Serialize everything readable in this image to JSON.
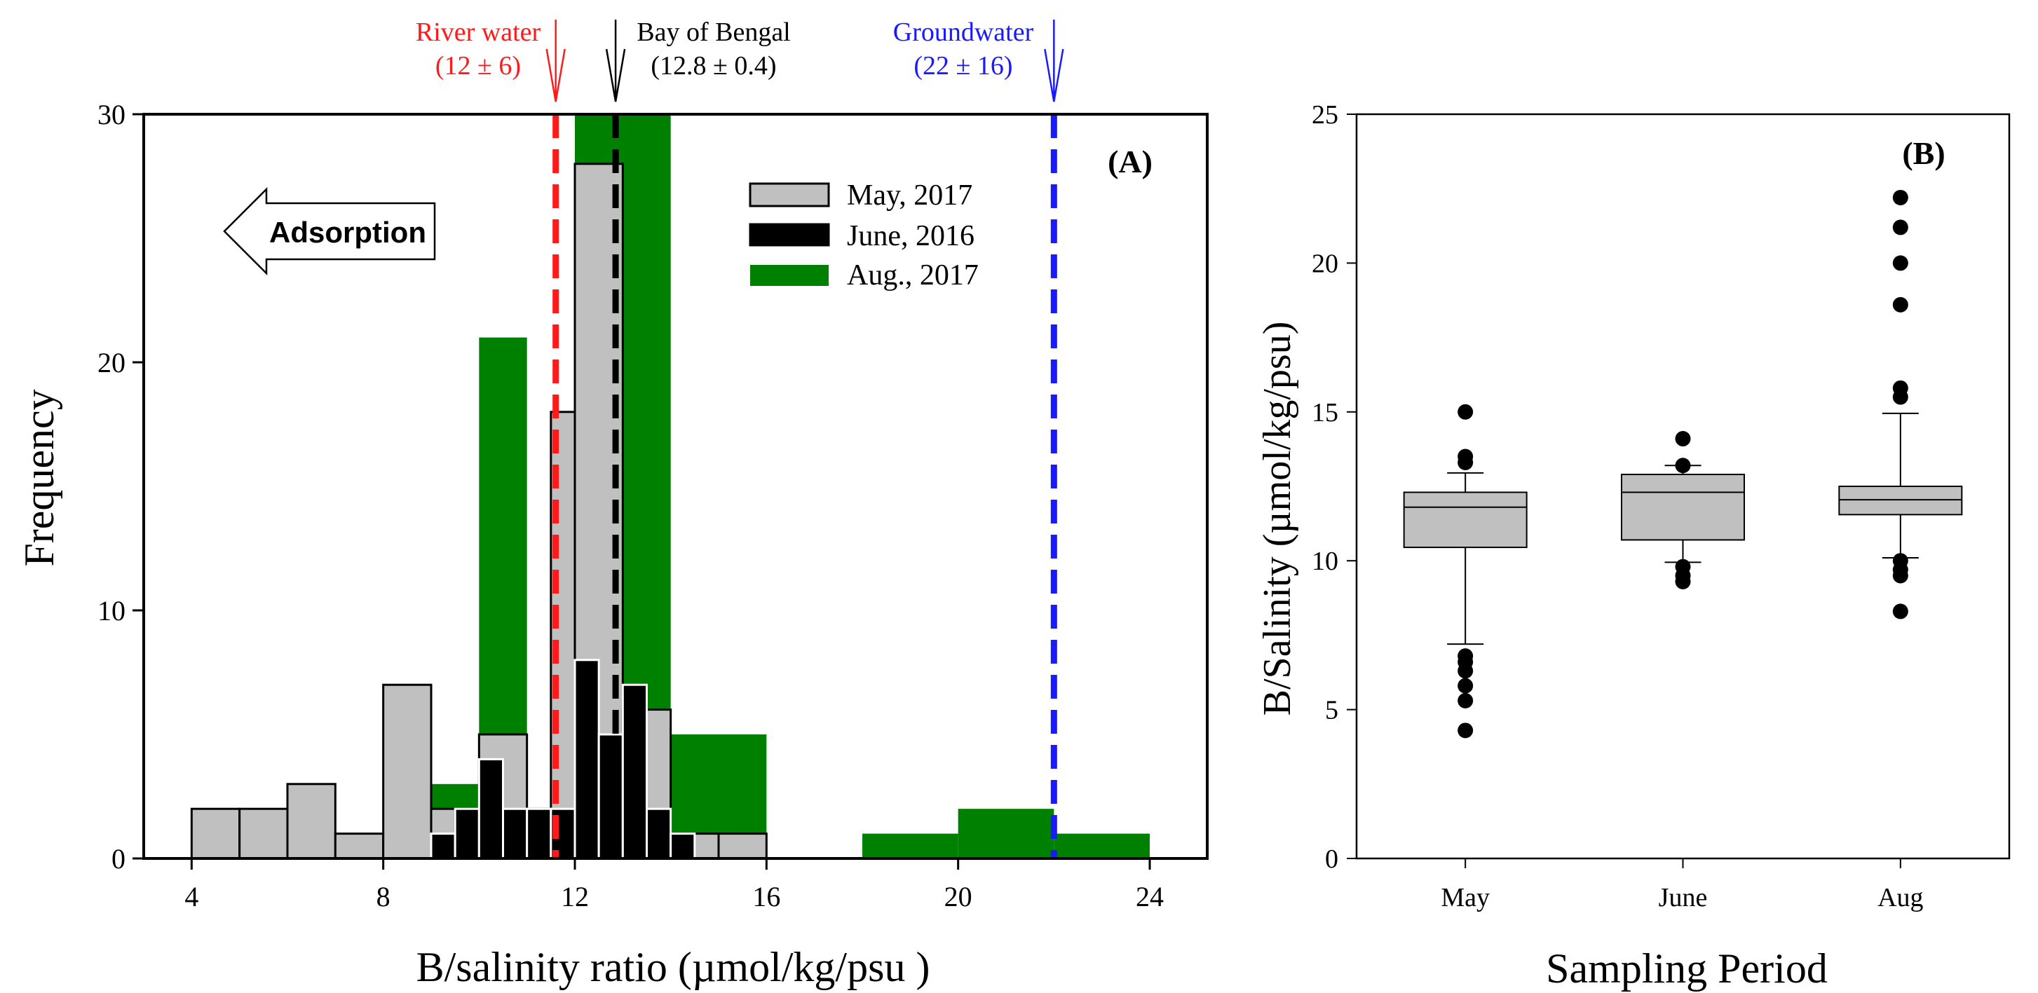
{
  "colors": {
    "may": "#c0c0c0",
    "june": "#000000",
    "aug": "#008000",
    "river": "#ff1a1a",
    "groundwater": "#1a1aff",
    "bay": "#000000",
    "box": "#c0c0c0"
  },
  "chart_data": [
    {
      "type": "bar",
      "panel_label": "(A)",
      "xlabel": "B/salinity ratio (µmol/kg/psu )",
      "ylabel": "Frequency",
      "xlim": [
        3,
        25.2
      ],
      "ylim": [
        0,
        30
      ],
      "xticks": [
        4,
        8,
        12,
        16,
        20,
        24
      ],
      "yticks": [
        0,
        10,
        20,
        30
      ],
      "legend_position": "top-right",
      "grid": false,
      "series": [
        {
          "name": "Aug., 2017",
          "color": "#008000",
          "bins": [
            {
              "x0": 9,
              "x1": 10,
              "count": 3
            },
            {
              "x0": 10,
              "x1": 11,
              "count": 21
            },
            {
              "x0": 11,
              "x1": 12,
              "count": 2
            },
            {
              "x0": 12,
              "x1": 14,
              "count": 30
            },
            {
              "x0": 14,
              "x1": 16,
              "count": 5
            },
            {
              "x0": 18,
              "x1": 20,
              "count": 1
            },
            {
              "x0": 20,
              "x1": 22,
              "count": 2
            },
            {
              "x0": 22,
              "x1": 24,
              "count": 1
            }
          ]
        },
        {
          "name": "May, 2017",
          "color": "#c0c0c0",
          "bins": [
            {
              "x0": 4,
              "x1": 5,
              "count": 2
            },
            {
              "x0": 5,
              "x1": 6,
              "count": 2
            },
            {
              "x0": 6,
              "x1": 7,
              "count": 3
            },
            {
              "x0": 7,
              "x1": 8,
              "count": 1
            },
            {
              "x0": 8,
              "x1": 9,
              "count": 7
            },
            {
              "x0": 9,
              "x1": 9.5,
              "count": 2
            },
            {
              "x0": 9.5,
              "x1": 10,
              "count": 2
            },
            {
              "x0": 10,
              "x1": 11,
              "count": 5
            },
            {
              "x0": 11,
              "x1": 11.5,
              "count": 2
            },
            {
              "x0": 11.5,
              "x1": 12,
              "count": 18
            },
            {
              "x0": 12,
              "x1": 13,
              "count": 28
            },
            {
              "x0": 13,
              "x1": 14,
              "count": 6
            },
            {
              "x0": 14,
              "x1": 15,
              "count": 1
            },
            {
              "x0": 15,
              "x1": 16,
              "count": 1
            }
          ]
        },
        {
          "name": "June, 2016",
          "color": "#000000",
          "bins": [
            {
              "x0": 9,
              "x1": 9.5,
              "count": 1
            },
            {
              "x0": 9.5,
              "x1": 10,
              "count": 2
            },
            {
              "x0": 10,
              "x1": 10.5,
              "count": 4
            },
            {
              "x0": 10.5,
              "x1": 11,
              "count": 2
            },
            {
              "x0": 11,
              "x1": 11.5,
              "count": 2
            },
            {
              "x0": 11.5,
              "x1": 12,
              "count": 2
            },
            {
              "x0": 12,
              "x1": 12.5,
              "count": 8
            },
            {
              "x0": 12.5,
              "x1": 13,
              "count": 5
            },
            {
              "x0": 13,
              "x1": 13.5,
              "count": 7
            },
            {
              "x0": 13.5,
              "x1": 14,
              "count": 2
            },
            {
              "x0": 14,
              "x1": 14.5,
              "count": 1
            },
            {
              "x0": 14.5,
              "x1": 15,
              "count": 0
            }
          ]
        }
      ],
      "legend_order": [
        "May, 2017",
        "June, 2016",
        "Aug., 2017"
      ],
      "reference_lines": [
        {
          "name": "River water",
          "value_label": "(12 ± 6)",
          "x": 11.6,
          "color": "#ff1a1a"
        },
        {
          "name": "Bay of Bengal",
          "value_label": "(12.8 ± 0.4)",
          "x": 12.85,
          "color": "#000000"
        },
        {
          "name": "Groundwater",
          "value_label": "(22 ± 16)",
          "x": 22,
          "color": "#1a1aff"
        }
      ],
      "annotation": {
        "text": "Adsorption",
        "direction": "left"
      }
    },
    {
      "type": "box",
      "panel_label": "(B)",
      "xlabel": "Sampling Period",
      "ylabel": "B/Salinity (µmol/kg/psu)",
      "ylim": [
        0,
        25
      ],
      "yticks": [
        0,
        5,
        10,
        15,
        20,
        25
      ],
      "categories": [
        "May",
        "June",
        "Aug"
      ],
      "boxes": [
        {
          "category": "May",
          "whisker_low": 7.2,
          "q1": 10.45,
          "median": 11.8,
          "q3": 12.3,
          "whisker_high": 12.95,
          "outliers": [
            4.3,
            5.3,
            5.8,
            6.3,
            6.6,
            6.8,
            13.3,
            13.5,
            15.0
          ]
        },
        {
          "category": "June",
          "whisker_low": 9.95,
          "q1": 10.7,
          "median": 12.3,
          "q3": 12.9,
          "whisker_high": 13.2,
          "outliers": [
            9.3,
            9.5,
            9.8,
            13.2,
            14.1
          ]
        },
        {
          "category": "Aug",
          "whisker_low": 10.1,
          "q1": 11.55,
          "median": 12.05,
          "q3": 12.5,
          "whisker_high": 14.95,
          "outliers": [
            8.3,
            9.5,
            9.7,
            10.0,
            15.5,
            15.8,
            18.6,
            20.0,
            21.2,
            22.2
          ]
        }
      ]
    }
  ]
}
